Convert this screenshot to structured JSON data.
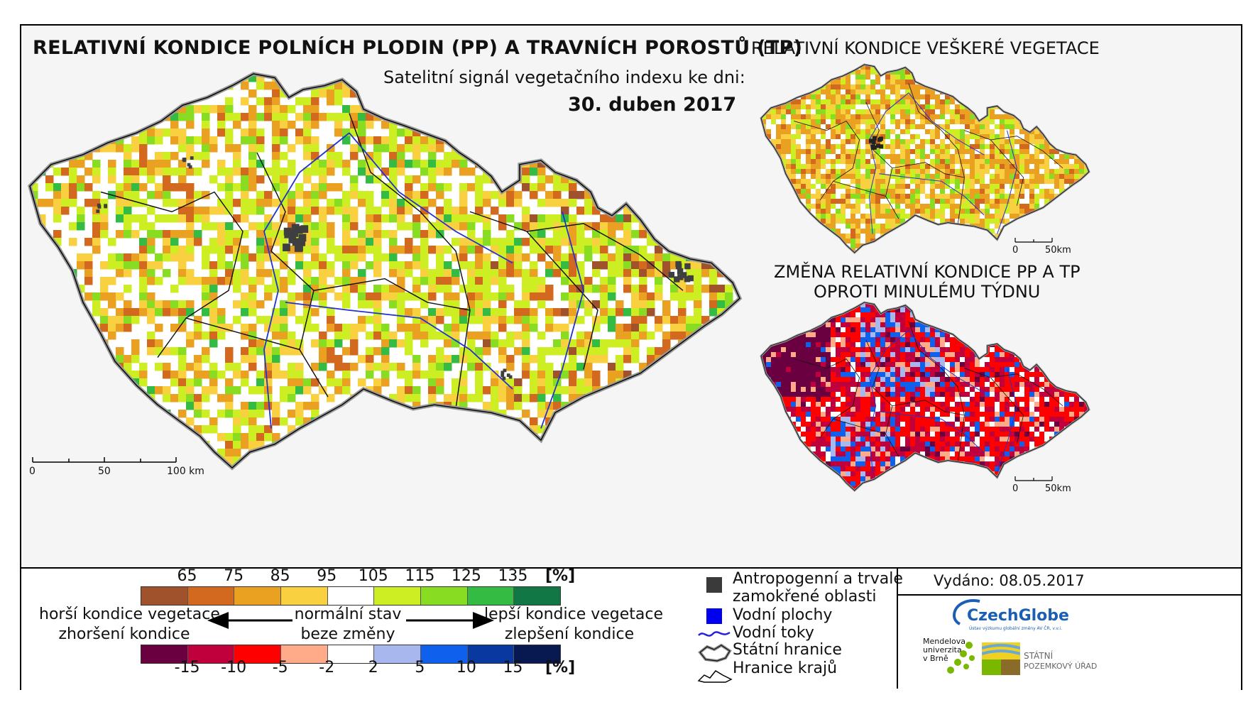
{
  "title_main": "RELATIVNÍ KONDICE POLNÍCH PLODIN (PP) A TRAVNÍCH POROSTŮ (TP)",
  "subtitle": "Satelitní signál vegetačního indexu ke dni:",
  "date": "30. duben 2017",
  "title_right_top": "RELATIVNÍ KONDICE VEŠKERÉ VEGETACE",
  "title_right_bottom_1": "ZMĚNA RELATIVNÍ KONDICE PP A TP",
  "title_right_bottom_2": "OPROTI MINULÉMU TÝDNU",
  "main_scale": {
    "l0": "0",
    "l1": "50",
    "l2": "100 km"
  },
  "small_scale": {
    "l0": "0",
    "l1": "50km"
  },
  "condition_scale": {
    "unit": "[%]",
    "ticks": [
      "65",
      "75",
      "85",
      "95",
      "105",
      "115",
      "125",
      "135"
    ],
    "colors": [
      "#a0522d",
      "#d2691e",
      "#eaa020",
      "#f8d040",
      "#ffffff",
      "#ccee22",
      "#88dd22",
      "#33bb44",
      "#117744"
    ]
  },
  "change_scale": {
    "unit": "[%]",
    "ticks": [
      "-15",
      "-10",
      "-5",
      "-2",
      "2",
      "5",
      "10",
      "15"
    ],
    "colors": [
      "#6b0040",
      "#c0003c",
      "#ff0000",
      "#ffaa88",
      "#ffffff",
      "#a8b8ee",
      "#1060ee",
      "#0838a0",
      "#081850"
    ]
  },
  "descriptions": {
    "worse_1": "horší kondice vegetace",
    "worse_2": "zhoršení kondice",
    "normal_1": "normální stav",
    "normal_2": "beze změny",
    "better_1": "lepší kondice vegetace",
    "better_2": "zlepšení kondice"
  },
  "legend": {
    "anthropogenic_1": "Antropogenní a trvale",
    "anthropogenic_2": "zamokřené oblasti",
    "water_areas": "Vodní plochy",
    "rivers": "Vodní toky",
    "state_border": "Státní hranice",
    "region_border": "Hranice krajů"
  },
  "issued": "Vydáno: 08.05.2017",
  "logos": {
    "czechglobe": "CzechGlobe",
    "czechglobe_sub": "Ústav výzkumu globální změny AV ČR, v.v.i.",
    "mendel_1": "Mendelova",
    "mendel_2": "univerzita",
    "mendel_3": "v Brně",
    "spu_1": "STÁTNÍ",
    "spu_2": "POZEMKOVÝ ÚŘAD"
  }
}
